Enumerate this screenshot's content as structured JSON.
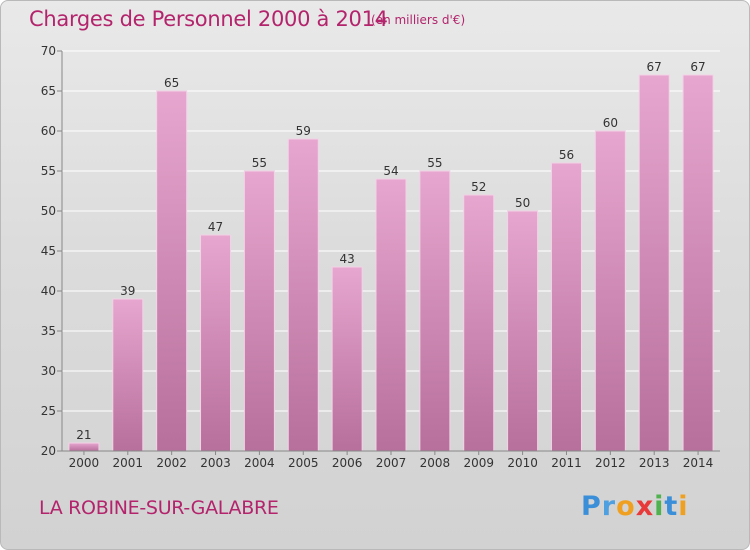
{
  "header": {
    "title": "Charges de Personnel 2000 à 2014",
    "subtitle": "(en milliers d'€)"
  },
  "footer": {
    "commune": "LA ROBINE-SUR-GALABRE",
    "logo_text": "Proxiti"
  },
  "colors": {
    "accent": "#b3246c",
    "bar_top": "#e6a6cf",
    "bar_bottom": "#b76f9b"
  },
  "chart_data": {
    "type": "bar",
    "categories": [
      "2000",
      "2001",
      "2002",
      "2003",
      "2004",
      "2005",
      "2006",
      "2007",
      "2008",
      "2009",
      "2010",
      "2011",
      "2012",
      "2013",
      "2014"
    ],
    "values": [
      21,
      39,
      65,
      47,
      55,
      59,
      43,
      54,
      55,
      52,
      50,
      56,
      60,
      67,
      67
    ],
    "data_labels": [
      "21",
      "39",
      "65",
      "47",
      "55",
      "59",
      "43",
      "54",
      "55",
      "52",
      "50",
      "56",
      "60",
      "67",
      "67"
    ],
    "title": "Charges de Personnel 2000 à 2014",
    "subtitle": "(en milliers d'€)",
    "ylim": [
      20,
      70
    ],
    "yticks": [
      20,
      25,
      30,
      35,
      40,
      45,
      50,
      55,
      60,
      65,
      70
    ],
    "grid": true
  }
}
